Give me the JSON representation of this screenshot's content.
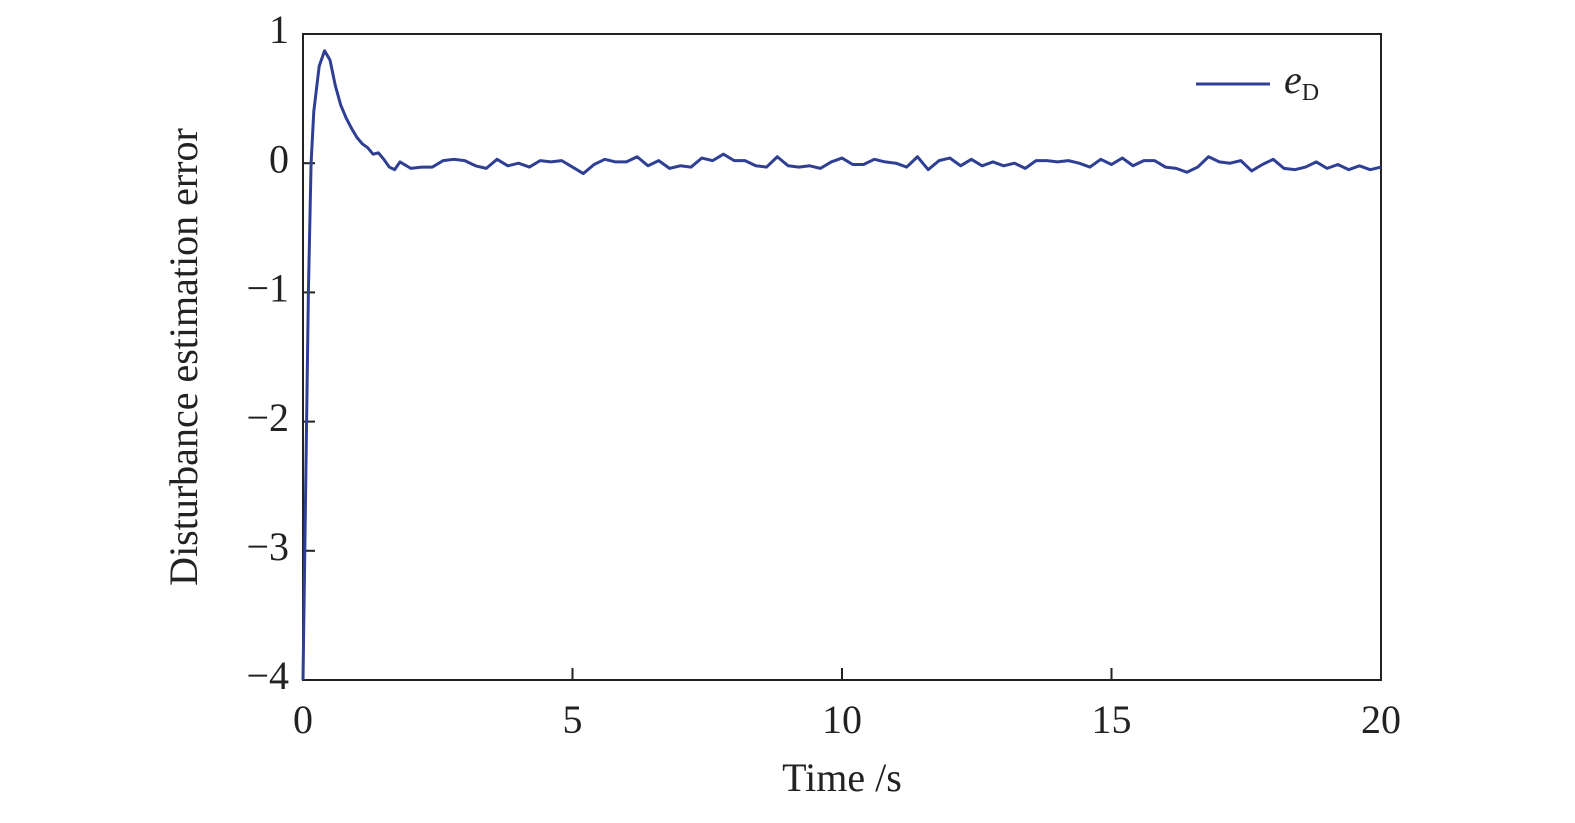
{
  "chart_data": {
    "type": "line",
    "xlabel": "Time /s",
    "ylabel": "Disturbance estimation error",
    "xlim": [
      0,
      20
    ],
    "xticks": [
      0,
      5,
      10,
      15,
      20
    ],
    "ylim": [
      -4,
      1
    ],
    "yticks": [
      {
        "value": -4,
        "label": "−4"
      },
      {
        "value": -3,
        "label": "−3"
      },
      {
        "value": -2,
        "label": "−2"
      },
      {
        "value": -1,
        "label": "−1"
      },
      0,
      1
    ],
    "legend": "upper right",
    "grid": false,
    "x": [
      0,
      0.05,
      0.1,
      0.15,
      0.2,
      0.3,
      0.4,
      0.5,
      0.6,
      0.7,
      0.8,
      0.9,
      1.0,
      1.1,
      1.2,
      1.3,
      1.4,
      1.5,
      1.6,
      1.7,
      1.8,
      2.0,
      2.2,
      2.4,
      2.6,
      2.8,
      3.0,
      3.2,
      3.4,
      3.6,
      3.8,
      4.0,
      4.2,
      4.4,
      4.6,
      4.8,
      5.0,
      5.2,
      5.4,
      5.6,
      5.8,
      6.0,
      6.2,
      6.4,
      6.6,
      6.8,
      7.0,
      7.2,
      7.4,
      7.6,
      7.8,
      8.0,
      8.2,
      8.4,
      8.6,
      8.8,
      9.0,
      9.2,
      9.4,
      9.6,
      9.8,
      10.0,
      10.2,
      10.4,
      10.6,
      10.8,
      11.0,
      11.2,
      11.4,
      11.6,
      11.8,
      12.0,
      12.2,
      12.4,
      12.6,
      12.8,
      13.0,
      13.2,
      13.4,
      13.6,
      13.8,
      14.0,
      14.2,
      14.4,
      14.6,
      14.8,
      15.0,
      15.2,
      15.4,
      15.6,
      15.8,
      16.0,
      16.2,
      16.4,
      16.6,
      16.8,
      17.0,
      17.2,
      17.4,
      17.6,
      17.8,
      18.0,
      18.2,
      18.4,
      18.6,
      18.8,
      19.0,
      19.2,
      19.4,
      19.6,
      19.8,
      20.0
    ],
    "series": [
      {
        "name": "eD",
        "color": "#2e3f94",
        "values": [
          -4,
          -2.5,
          -1,
          0,
          0.4,
          0.75,
          0.87,
          0.8,
          0.6,
          0.45,
          0.35,
          0.27,
          0.2,
          0.15,
          0.12,
          0.07,
          0.08,
          0.03,
          -0.03,
          -0.05,
          0.01,
          -0.04,
          -0.03,
          -0.03,
          0.02,
          0.03,
          0.02,
          -0.02,
          -0.04,
          0.03,
          -0.02,
          0.0,
          -0.03,
          0.02,
          0.01,
          0.02,
          -0.03,
          -0.08,
          -0.01,
          0.03,
          0.01,
          0.01,
          0.05,
          -0.02,
          0.02,
          -0.04,
          -0.02,
          -0.03,
          0.04,
          0.02,
          0.07,
          0.02,
          0.02,
          -0.02,
          -0.03,
          0.05,
          -0.02,
          -0.03,
          -0.02,
          -0.04,
          0.01,
          0.04,
          -0.01,
          -0.01,
          0.03,
          0.01,
          0.0,
          -0.03,
          0.05,
          -0.05,
          0.02,
          0.04,
          -0.02,
          0.03,
          -0.02,
          0.01,
          -0.02,
          0.0,
          -0.04,
          0.02,
          0.02,
          0.01,
          0.02,
          0.0,
          -0.03,
          0.03,
          -0.01,
          0.04,
          -0.02,
          0.02,
          0.02,
          -0.03,
          -0.04,
          -0.07,
          -0.03,
          0.05,
          0.01,
          0.0,
          0.02,
          -0.06,
          -0.01,
          0.03,
          -0.04,
          -0.05,
          -0.03,
          0.01,
          -0.04,
          -0.01,
          -0.05,
          -0.02,
          -0.05,
          -0.03
        ]
      }
    ]
  }
}
